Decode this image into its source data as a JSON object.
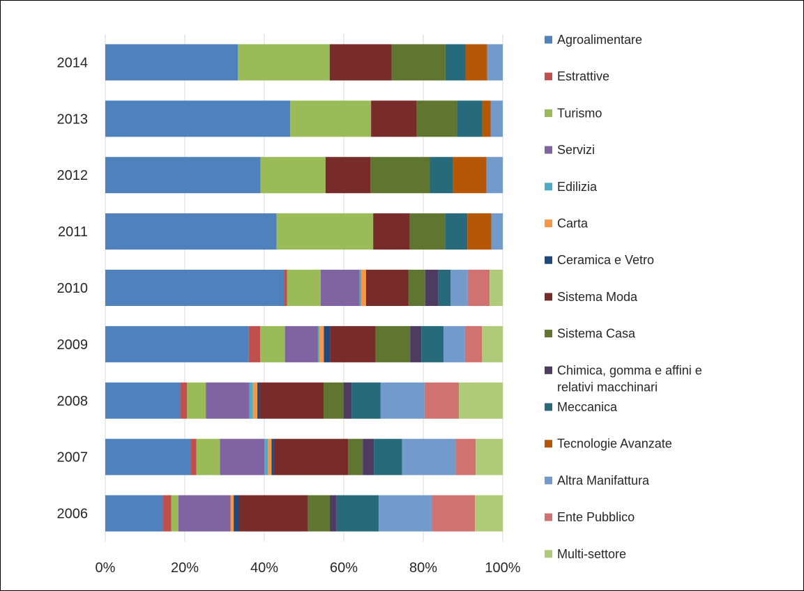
{
  "chart_data": {
    "type": "bar",
    "orientation": "horizontal",
    "stacked": "percent",
    "title": "",
    "xlabel": "",
    "ylabel": "",
    "xlim": [
      0,
      100
    ],
    "x_ticks": [
      "0%",
      "20%",
      "40%",
      "60%",
      "80%",
      "100%"
    ],
    "grid": "vertical",
    "legend_position": "right",
    "categories": [
      "2014",
      "2013",
      "2012",
      "2011",
      "2010",
      "2009",
      "2008",
      "2007",
      "2006"
    ],
    "series": [
      {
        "name": "Agroalimentare",
        "color": "#4F81BD",
        "values": [
          33.3,
          46.5,
          39.0,
          43.1,
          45.0,
          36.1,
          18.8,
          21.4,
          14.4
        ]
      },
      {
        "name": "Estrattive",
        "color": "#C0504D",
        "values": [
          0,
          0,
          0,
          0,
          0.7,
          2.9,
          1.7,
          1.5,
          2.2
        ]
      },
      {
        "name": "Turismo",
        "color": "#9BBB59",
        "values": [
          23.1,
          20.3,
          16.3,
          24.3,
          8.5,
          6.2,
          4.7,
          5.9,
          1.8
        ]
      },
      {
        "name": "Servizi",
        "color": "#8064A2",
        "values": [
          0,
          0,
          0,
          0,
          9.8,
          8.3,
          10.9,
          11.2,
          13.1
        ]
      },
      {
        "name": "Edilizia",
        "color": "#4BACC6",
        "values": [
          0,
          0,
          0,
          0,
          0.4,
          0.4,
          0.9,
          0.9,
          0
        ]
      },
      {
        "name": "Carta",
        "color": "#F79646",
        "values": [
          0,
          0,
          0,
          0,
          1.2,
          1.1,
          1.1,
          0.9,
          0.8
        ]
      },
      {
        "name": "Ceramica e Vetro",
        "color": "#1F497D",
        "values": [
          0,
          0,
          0,
          0,
          0,
          1.6,
          0.6,
          0.6,
          1.3
        ]
      },
      {
        "name": "Sistema Moda",
        "color": "#772C2A",
        "values": [
          15.6,
          11.5,
          11.3,
          9.2,
          10.7,
          11.4,
          16.0,
          18.6,
          17.4
        ]
      },
      {
        "name": "Sistema Casa",
        "color": "#5F7530",
        "values": [
          13.5,
          10.2,
          14.9,
          8.9,
          4.2,
          8.7,
          5.0,
          3.7,
          5.5
        ]
      },
      {
        "name": "Chimica, gomma e affini e relativi macchinari",
        "color": "#4D3B62",
        "values": [
          0,
          0,
          0,
          0,
          3.3,
          2.8,
          2.0,
          2.8,
          1.7
        ]
      },
      {
        "name": "Meccanica",
        "color": "#276A7C",
        "values": [
          5.1,
          6.3,
          5.8,
          5.6,
          3.1,
          5.6,
          7.3,
          7.1,
          10.6
        ]
      },
      {
        "name": "Tecnologie Avanzate",
        "color": "#B65708",
        "values": [
          5.4,
          2.1,
          8.4,
          6.0,
          0,
          0,
          0,
          0,
          0
        ]
      },
      {
        "name": "Altra Manifattura",
        "color": "#729ACA",
        "values": [
          3.9,
          3.0,
          4.1,
          2.9,
          4.3,
          5.4,
          11.0,
          13.4,
          13.4
        ]
      },
      {
        "name": "Ente Pubblico",
        "color": "#D07370",
        "values": [
          0,
          0,
          0,
          0,
          5.5,
          4.3,
          8.6,
          5.1,
          10.8
        ]
      },
      {
        "name": "Multi-settore",
        "color": "#AFCB7A",
        "values": [
          0,
          0,
          0,
          0,
          3.3,
          5.2,
          11.0,
          6.8,
          7.0
        ]
      }
    ]
  }
}
